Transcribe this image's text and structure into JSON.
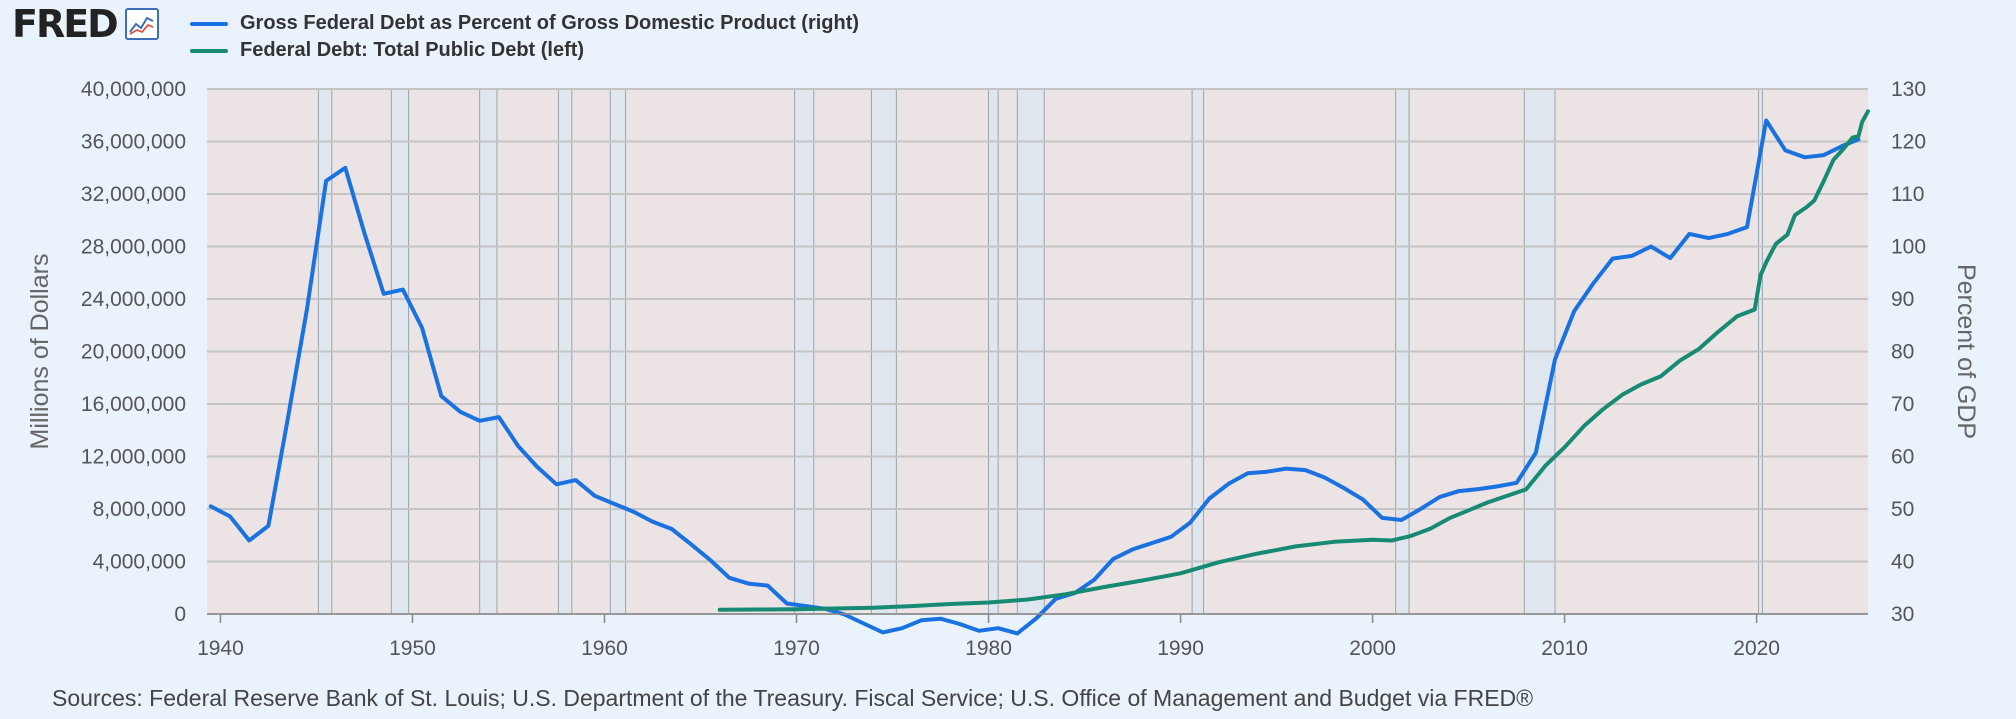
{
  "header": {
    "logo_text": "FRED",
    "logo_icon": "line-chart-icon"
  },
  "legend": [
    {
      "label": "Gross Federal Debt as Percent of Gross Domestic Product (right)",
      "color": "#1a72e0"
    },
    {
      "label": "Federal Debt: Total Public Debt (left)",
      "color": "#168a72"
    }
  ],
  "source": "Sources: Federal Reserve Bank of St. Louis; U.S. Department of the Treasury. Fiscal Service; U.S. Office of Management and Budget via FRED®",
  "chart_data": {
    "type": "line",
    "title": "",
    "xlabel": "",
    "ylabel": "Millions of Dollars",
    "y2label": "Percent of GDP",
    "xlim": [
      1939.3,
      2025.8
    ],
    "ylim": [
      0,
      40000000
    ],
    "y2lim": [
      30,
      130
    ],
    "x_ticks": [
      1940,
      1950,
      1960,
      1970,
      1980,
      1990,
      2000,
      2010,
      2020
    ],
    "y_ticks": [
      0,
      4000000,
      8000000,
      12000000,
      16000000,
      20000000,
      24000000,
      28000000,
      32000000,
      36000000,
      40000000
    ],
    "y_tick_labels": [
      "0",
      "4,000,000",
      "8,000,000",
      "12,000,000",
      "16,000,000",
      "20,000,000",
      "24,000,000",
      "28,000,000",
      "32,000,000",
      "36,000,000",
      "40,000,000"
    ],
    "y2_ticks": [
      30,
      40,
      50,
      60,
      70,
      80,
      90,
      100,
      110,
      120,
      130
    ],
    "grid": true,
    "plot_background": "#ece3e4",
    "recession_color": "#dfe6ee",
    "recessions": [
      [
        1945.1,
        1945.8
      ],
      [
        1948.9,
        1949.8
      ],
      [
        1953.5,
        1954.4
      ],
      [
        1957.6,
        1958.3
      ],
      [
        1960.3,
        1961.1
      ],
      [
        1969.9,
        1970.9
      ],
      [
        1973.9,
        1975.2
      ],
      [
        1980.0,
        1980.5
      ],
      [
        1981.5,
        1982.9
      ],
      [
        1990.6,
        1991.2
      ],
      [
        2001.2,
        2001.9
      ],
      [
        2007.9,
        2009.5
      ],
      [
        2020.1,
        2020.3
      ]
    ],
    "series": [
      {
        "name": "Gross Federal Debt as Percent of Gross Domestic Product (right)",
        "axis": "right",
        "color": "#1a72e0",
        "points": [
          [
            1939.5,
            50.5
          ],
          [
            1940.5,
            48.6
          ],
          [
            1941.5,
            44.0
          ],
          [
            1942.5,
            46.8
          ],
          [
            1943.5,
            67.0
          ],
          [
            1944.5,
            88.0
          ],
          [
            1945.5,
            112.5
          ],
          [
            1946.5,
            115.0
          ],
          [
            1947.5,
            102.5
          ],
          [
            1948.5,
            91.0
          ],
          [
            1949.5,
            91.8
          ],
          [
            1950.5,
            84.5
          ],
          [
            1951.5,
            71.5
          ],
          [
            1952.5,
            68.5
          ],
          [
            1953.5,
            66.8
          ],
          [
            1954.5,
            67.5
          ],
          [
            1955.5,
            62.0
          ],
          [
            1956.5,
            58.0
          ],
          [
            1957.5,
            54.7
          ],
          [
            1958.5,
            55.5
          ],
          [
            1959.5,
            52.5
          ],
          [
            1960.5,
            51.0
          ],
          [
            1961.5,
            49.5
          ],
          [
            1962.5,
            47.6
          ],
          [
            1963.5,
            46.2
          ],
          [
            1964.5,
            43.3
          ],
          [
            1965.5,
            40.3
          ],
          [
            1966.5,
            36.9
          ],
          [
            1967.5,
            35.8
          ],
          [
            1968.5,
            35.4
          ],
          [
            1969.5,
            32.0
          ],
          [
            1970.5,
            31.5
          ],
          [
            1971.5,
            31.0
          ],
          [
            1972.5,
            29.9
          ],
          [
            1973.5,
            28.2
          ],
          [
            1974.5,
            26.5
          ],
          [
            1975.5,
            27.3
          ],
          [
            1976.5,
            28.8
          ],
          [
            1977.5,
            29.1
          ],
          [
            1978.5,
            28.1
          ],
          [
            1979.5,
            26.8
          ],
          [
            1980.5,
            27.3
          ],
          [
            1981.5,
            26.3
          ],
          [
            1982.5,
            29.2
          ],
          [
            1983.5,
            32.9
          ],
          [
            1984.5,
            34.0
          ],
          [
            1985.5,
            36.5
          ],
          [
            1986.5,
            40.5
          ],
          [
            1987.5,
            42.3
          ],
          [
            1988.5,
            43.5
          ],
          [
            1989.5,
            44.7
          ],
          [
            1990.5,
            47.4
          ],
          [
            1991.5,
            52.0
          ],
          [
            1992.5,
            54.8
          ],
          [
            1993.5,
            56.8
          ],
          [
            1994.5,
            57.1
          ],
          [
            1995.5,
            57.7
          ],
          [
            1996.5,
            57.4
          ],
          [
            1997.5,
            56.0
          ],
          [
            1998.5,
            54.0
          ],
          [
            1999.5,
            51.8
          ],
          [
            2000.5,
            48.3
          ],
          [
            2001.5,
            47.9
          ],
          [
            2002.5,
            50.0
          ],
          [
            2003.5,
            52.3
          ],
          [
            2004.5,
            53.4
          ],
          [
            2005.5,
            53.8
          ],
          [
            2006.5,
            54.3
          ],
          [
            2007.5,
            55.0
          ],
          [
            2008.5,
            60.7
          ],
          [
            2009.5,
            78.5
          ],
          [
            2010.5,
            87.7
          ],
          [
            2011.5,
            93.0
          ],
          [
            2012.5,
            97.7
          ],
          [
            2013.5,
            98.2
          ],
          [
            2014.5,
            100.0
          ],
          [
            2015.5,
            97.8
          ],
          [
            2016.5,
            102.4
          ],
          [
            2017.5,
            101.6
          ],
          [
            2018.5,
            102.4
          ],
          [
            2019.5,
            103.7
          ],
          [
            2020.5,
            124.0
          ],
          [
            2021.5,
            118.3
          ],
          [
            2022.5,
            117.0
          ],
          [
            2023.5,
            117.4
          ],
          [
            2024.5,
            119.2
          ],
          [
            2025.3,
            120.4
          ]
        ]
      },
      {
        "name": "Federal Debt: Total Public Debt (left)",
        "axis": "left",
        "color": "#168a72",
        "points": [
          [
            1966.0,
            320000
          ],
          [
            1968.0,
            340000
          ],
          [
            1970.0,
            360000
          ],
          [
            1972.0,
            420000
          ],
          [
            1974.0,
            480000
          ],
          [
            1976.0,
            600000
          ],
          [
            1978.0,
            760000
          ],
          [
            1980.0,
            880000
          ],
          [
            1982.0,
            1100000
          ],
          [
            1984.0,
            1500000
          ],
          [
            1986.0,
            2050000
          ],
          [
            1988.0,
            2550000
          ],
          [
            1990.0,
            3100000
          ],
          [
            1992.0,
            3950000
          ],
          [
            1994.0,
            4600000
          ],
          [
            1996.0,
            5150000
          ],
          [
            1998.0,
            5500000
          ],
          [
            2000.0,
            5650000
          ],
          [
            2001.0,
            5600000
          ],
          [
            2002.0,
            5950000
          ],
          [
            2003.0,
            6500000
          ],
          [
            2004.0,
            7300000
          ],
          [
            2005.0,
            7900000
          ],
          [
            2006.0,
            8500000
          ],
          [
            2007.0,
            9000000
          ],
          [
            2008.0,
            9500000
          ],
          [
            2009.0,
            11300000
          ],
          [
            2010.0,
            12700000
          ],
          [
            2011.0,
            14300000
          ],
          [
            2012.0,
            15600000
          ],
          [
            2013.0,
            16700000
          ],
          [
            2014.0,
            17500000
          ],
          [
            2015.0,
            18100000
          ],
          [
            2016.0,
            19300000
          ],
          [
            2017.0,
            20200000
          ],
          [
            2018.0,
            21500000
          ],
          [
            2019.0,
            22700000
          ],
          [
            2019.9,
            23200000
          ],
          [
            2020.2,
            25800000
          ],
          [
            2020.5,
            26800000
          ],
          [
            2021.0,
            28200000
          ],
          [
            2021.6,
            28900000
          ],
          [
            2022.0,
            30400000
          ],
          [
            2022.6,
            31000000
          ],
          [
            2023.0,
            31500000
          ],
          [
            2023.5,
            33000000
          ],
          [
            2024.0,
            34600000
          ],
          [
            2024.5,
            35400000
          ],
          [
            2025.0,
            36300000
          ],
          [
            2025.3,
            36400000
          ],
          [
            2025.5,
            37500000
          ],
          [
            2025.8,
            38300000
          ]
        ]
      }
    ]
  }
}
